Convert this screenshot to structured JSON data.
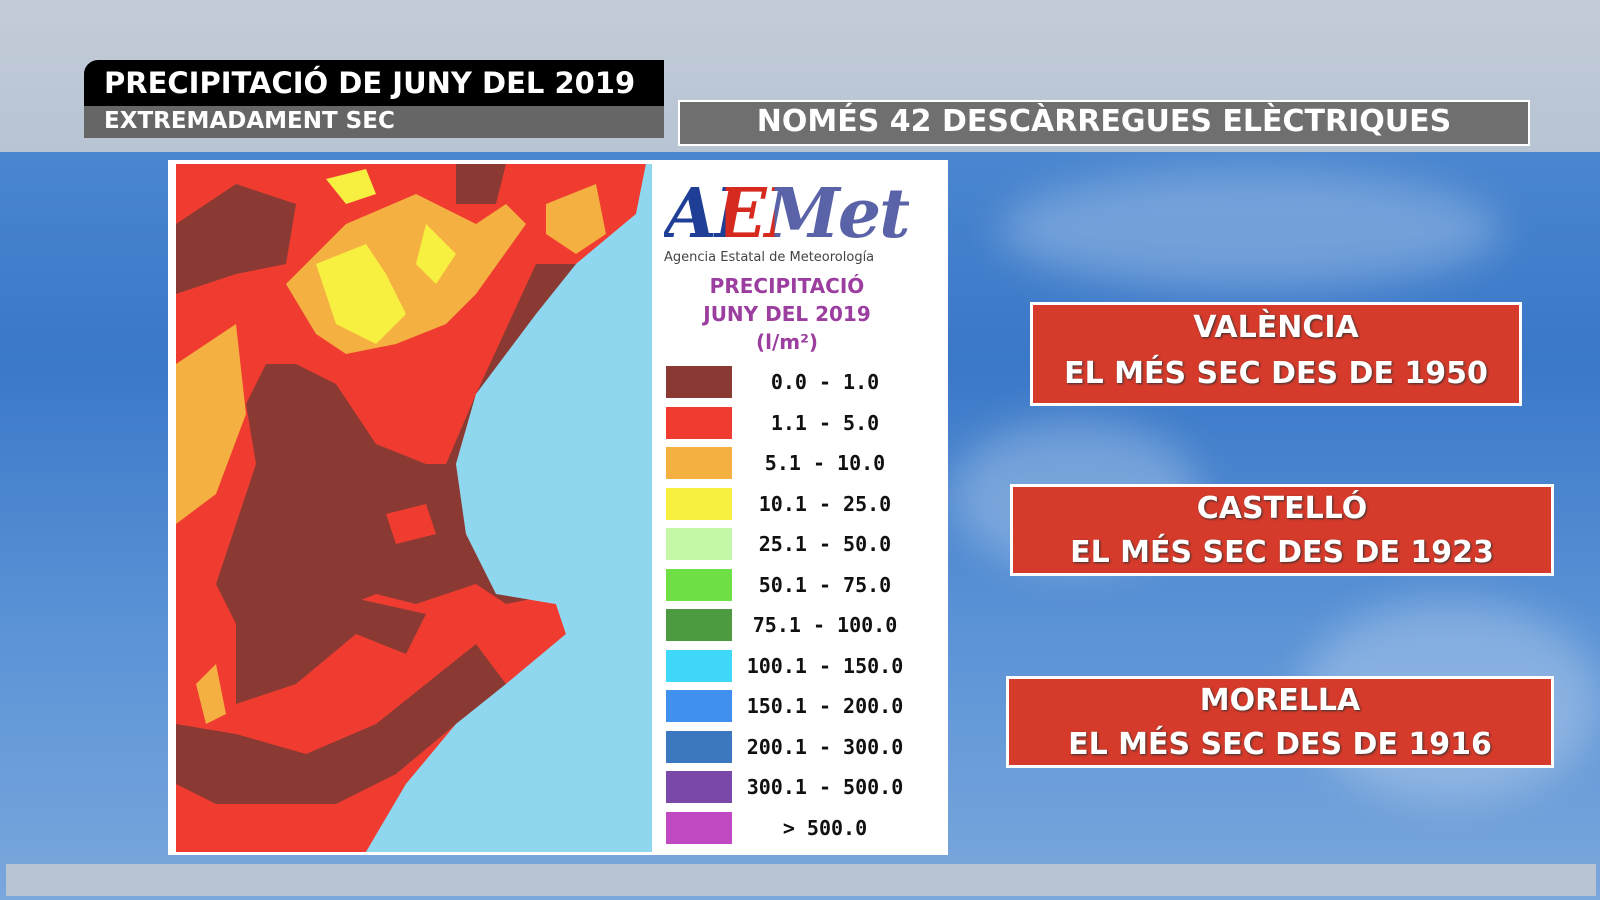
{
  "header": {
    "title": "PRECIPITACIÓ DE JUNY DEL 2019",
    "subtitle": "EXTREMADAMENT SEC",
    "banner": "NOMÉS 42 DESCÀRREGUES ELÈCTRIQUES"
  },
  "legend": {
    "logo": "AEMet",
    "agency": "Agencia Estatal de Meteorología",
    "title1": "PRECIPITACIÓ",
    "title2": "JUNY DEL 2019",
    "unit": "(l/m²)",
    "items": [
      {
        "label": "0.0 - 1.0",
        "color": "#8b3a33"
      },
      {
        "label": "1.1 - 5.0",
        "color": "#f03c30"
      },
      {
        "label": "5.1 - 10.0",
        "color": "#f4b040"
      },
      {
        "label": "10.1 - 25.0",
        "color": "#f8f040"
      },
      {
        "label": "25.1 - 50.0",
        "color": "#c4f8a8"
      },
      {
        "label": "50.1 - 75.0",
        "color": "#6ee046"
      },
      {
        "label": "75.1 - 100.0",
        "color": "#4e9a40"
      },
      {
        "label": "100.1 - 150.0",
        "color": "#40d8f8"
      },
      {
        "label": "150.1 - 200.0",
        "color": "#4090f0"
      },
      {
        "label": "200.1 - 300.0",
        "color": "#3c78c0"
      },
      {
        "label": "300.1 - 500.0",
        "color": "#7a48a8"
      },
      {
        "label": "> 500.0",
        "color": "#c048c0"
      }
    ]
  },
  "records": [
    {
      "place": "VALÈNCIA",
      "text": "EL MÉS SEC DES DE 1950"
    },
    {
      "place": "CASTELLÓ",
      "text": "EL MÉS SEC DES DE 1923"
    },
    {
      "place": "MORELLA",
      "text": "EL MÉS SEC DES DE 1916"
    }
  ]
}
